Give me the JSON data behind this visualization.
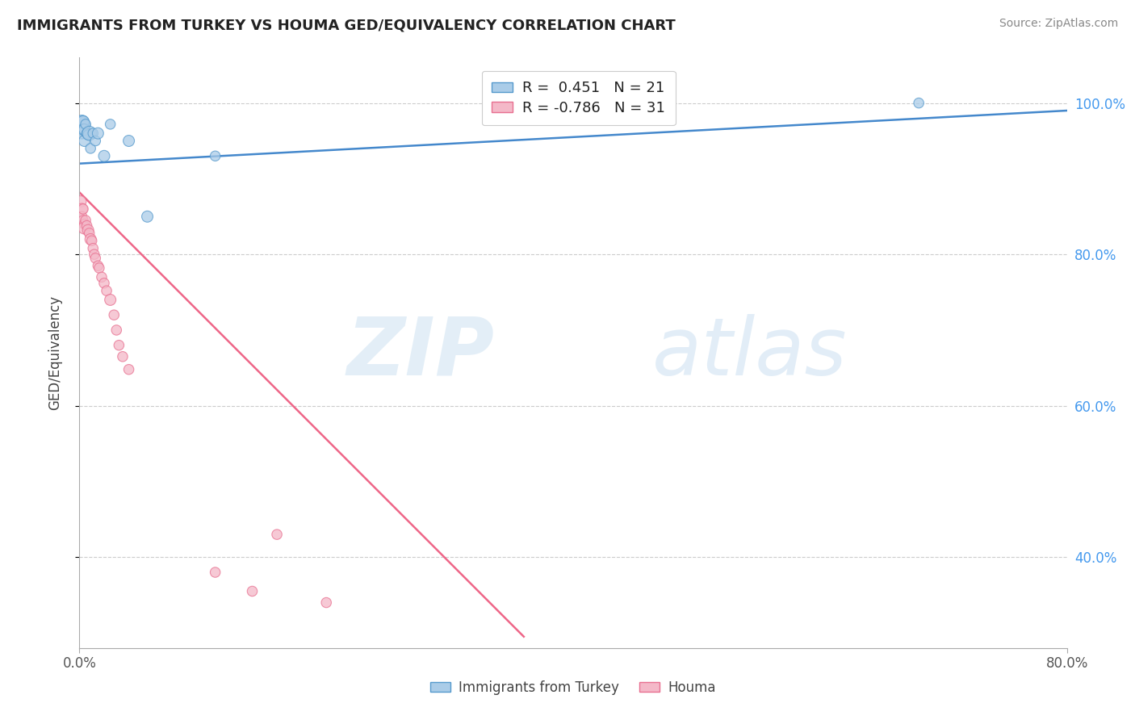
{
  "title": "IMMIGRANTS FROM TURKEY VS HOUMA GED/EQUIVALENCY CORRELATION CHART",
  "source": "Source: ZipAtlas.com",
  "ylabel": "GED/Equivalency",
  "x_range": [
    0.0,
    0.8
  ],
  "y_range": [
    0.28,
    1.06
  ],
  "blue_R": 0.451,
  "blue_N": 21,
  "pink_R": -0.786,
  "pink_N": 31,
  "blue_color": "#aacce8",
  "pink_color": "#f4b8c8",
  "blue_edge_color": "#5599cc",
  "pink_edge_color": "#e87090",
  "blue_line_color": "#4488cc",
  "pink_line_color": "#ee6688",
  "legend_label_blue": "Immigrants from Turkey",
  "legend_label_pink": "Houma",
  "background_color": "#ffffff",
  "grid_color": "#cccccc",
  "y_ticks": [
    0.4,
    0.6,
    0.8,
    1.0
  ],
  "y_tick_labels": [
    "40.0%",
    "60.0%",
    "80.0%",
    "100.0%"
  ],
  "blue_line_x": [
    0.0,
    0.8
  ],
  "blue_line_y": [
    0.92,
    0.99
  ],
  "pink_line_x": [
    0.0,
    0.36
  ],
  "pink_line_y": [
    0.882,
    0.295
  ],
  "blue_dots_x": [
    0.001,
    0.002,
    0.002,
    0.003,
    0.003,
    0.004,
    0.004,
    0.005,
    0.006,
    0.007,
    0.008,
    0.009,
    0.011,
    0.013,
    0.015,
    0.02,
    0.025,
    0.04,
    0.055,
    0.11,
    0.68
  ],
  "blue_dots_y": [
    0.97,
    0.975,
    0.96,
    0.975,
    0.965,
    0.965,
    0.95,
    0.972,
    0.96,
    0.958,
    0.96,
    0.94,
    0.96,
    0.95,
    0.96,
    0.93,
    0.972,
    0.95,
    0.85,
    0.93,
    1.0
  ],
  "blue_dots_size": [
    300,
    150,
    100,
    120,
    100,
    100,
    100,
    80,
    80,
    80,
    160,
    80,
    80,
    80,
    100,
    100,
    80,
    100,
    100,
    80,
    80
  ],
  "pink_dots_x": [
    0.001,
    0.002,
    0.002,
    0.003,
    0.003,
    0.004,
    0.004,
    0.005,
    0.006,
    0.007,
    0.008,
    0.009,
    0.01,
    0.011,
    0.012,
    0.013,
    0.015,
    0.016,
    0.018,
    0.02,
    0.022,
    0.025,
    0.028,
    0.03,
    0.032,
    0.035,
    0.04,
    0.11,
    0.14,
    0.16,
    0.2
  ],
  "pink_dots_y": [
    0.87,
    0.86,
    0.85,
    0.86,
    0.845,
    0.84,
    0.835,
    0.845,
    0.838,
    0.832,
    0.828,
    0.82,
    0.818,
    0.808,
    0.8,
    0.795,
    0.785,
    0.782,
    0.77,
    0.762,
    0.752,
    0.74,
    0.72,
    0.7,
    0.68,
    0.665,
    0.648,
    0.38,
    0.355,
    0.43,
    0.34
  ],
  "pink_dots_size": [
    100,
    100,
    80,
    80,
    80,
    80,
    120,
    80,
    80,
    100,
    80,
    100,
    80,
    80,
    80,
    80,
    80,
    80,
    80,
    80,
    80,
    100,
    80,
    80,
    80,
    80,
    80,
    80,
    80,
    80,
    80
  ]
}
